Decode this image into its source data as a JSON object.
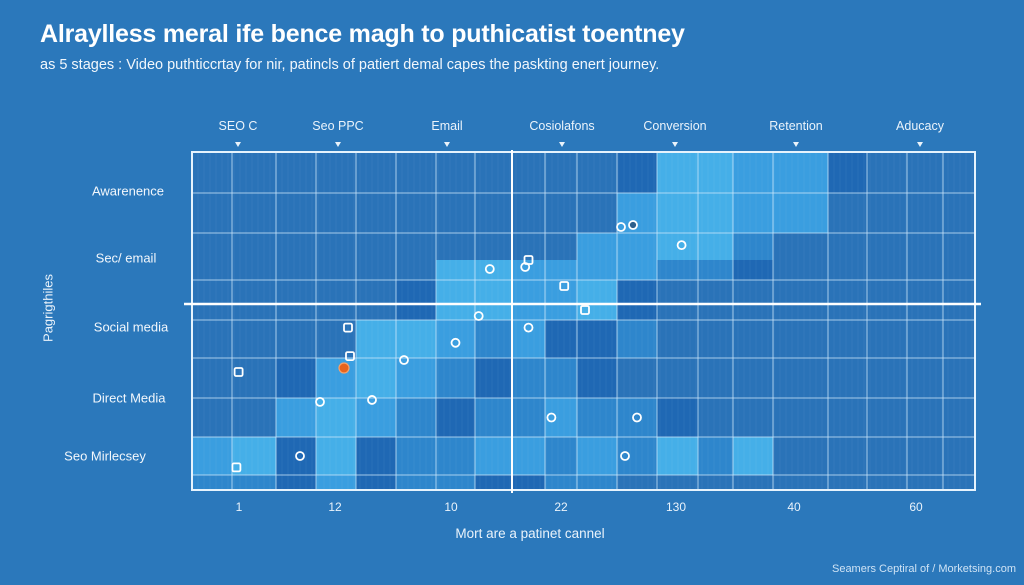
{
  "title": "Alraylless meral ife bence magh to puthicatist toentney",
  "subtitle": "as 5 stages : Video puthticcrtay for nir, patincls of patiert demal capes the paskting enert journey.",
  "credit": "Seamers Ceptiral of / Morketsing.com",
  "colors": {
    "background": "#2b78bb",
    "levels": [
      "#2a73b8",
      "#2e86cc",
      "#3a9ee0",
      "#45afe8",
      "#1f68b4"
    ],
    "grid_line": "#cfe8fb",
    "marker": "#ffffff",
    "highlight_marker": "#e8641c"
  },
  "chart_data": {
    "type": "heatmap",
    "title": "Alraylless meral ife bence magh to puthicatist toentney",
    "subtitle": "as 5 stages : Video puthticcrtay for nir, patincls of patiert demal capes the paskting enert journey.",
    "xlabel": "Mort are a patinet cannel",
    "ylabel": "Pagrigthiles",
    "stages": [
      "SEO C",
      "Seo PPC",
      "Email",
      "Cosiolafons",
      "Conversion",
      "Retention",
      "Aducacy"
    ],
    "rows": [
      "Awarenence",
      "Sec/ email",
      "Social media",
      "Direct Media",
      "Seo Mirlecsey"
    ],
    "xticks": [
      "1",
      "12",
      "10",
      "22",
      "130",
      "40",
      "60"
    ],
    "grid": true,
    "n_cols": 20,
    "n_rows": 10,
    "cells": [
      [
        0,
        0,
        0,
        0,
        0,
        0,
        0,
        0,
        0,
        0,
        0,
        4,
        3,
        3,
        2,
        2,
        4,
        0,
        0,
        0
      ],
      [
        0,
        0,
        0,
        0,
        0,
        0,
        0,
        0,
        0,
        0,
        0,
        2,
        3,
        3,
        2,
        2,
        0,
        0,
        0,
        0
      ],
      [
        0,
        0,
        0,
        0,
        0,
        0,
        0,
        0,
        0,
        0,
        2,
        2,
        3,
        3,
        1,
        0,
        0,
        0,
        0,
        0
      ],
      [
        0,
        0,
        0,
        0,
        0,
        0,
        3,
        3,
        2,
        2,
        2,
        2,
        1,
        1,
        4,
        0,
        0,
        0,
        0,
        0
      ],
      [
        0,
        0,
        0,
        0,
        0,
        4,
        3,
        3,
        2,
        2,
        3,
        4,
        0,
        0,
        0,
        0,
        0,
        0,
        0,
        0
      ],
      [
        0,
        0,
        0,
        0,
        3,
        3,
        2,
        1,
        2,
        4,
        4,
        1,
        0,
        0,
        0,
        0,
        0,
        0,
        0,
        0
      ],
      [
        0,
        0,
        4,
        2,
        3,
        2,
        1,
        4,
        1,
        1,
        4,
        0,
        0,
        0,
        0,
        0,
        0,
        0,
        0,
        0
      ],
      [
        0,
        0,
        2,
        3,
        2,
        1,
        4,
        1,
        1,
        2,
        1,
        1,
        4,
        0,
        0,
        0,
        0,
        0,
        0,
        0
      ],
      [
        2,
        3,
        4,
        3,
        4,
        1,
        1,
        2,
        2,
        1,
        2,
        1,
        3,
        1,
        3,
        0,
        0,
        0,
        0,
        0
      ],
      [
        1,
        1,
        4,
        2,
        4,
        1,
        1,
        4,
        4,
        1,
        1,
        0,
        0,
        0,
        0,
        0,
        0,
        0,
        0,
        0
      ]
    ],
    "markers": [
      {
        "shape": "circle",
        "col": 11.1,
        "row": 1.85
      },
      {
        "shape": "circle",
        "col": 11.4,
        "row": 1.8,
        "filled": true
      },
      {
        "shape": "circle",
        "col": 12.6,
        "row": 2.45
      },
      {
        "shape": "square",
        "col": 8.5,
        "row": 3.0
      },
      {
        "shape": "circle",
        "col": 7.4,
        "row": 3.45
      },
      {
        "shape": "circle",
        "col": 8.4,
        "row": 3.35
      },
      {
        "shape": "square",
        "col": 9.6,
        "row": 4.15
      },
      {
        "shape": "circle",
        "col": 7.1,
        "row": 4.9
      },
      {
        "shape": "square",
        "col": 10.2,
        "row": 4.75
      },
      {
        "shape": "circle",
        "col": 8.5,
        "row": 5.2
      },
      {
        "shape": "square",
        "col": 3.8,
        "row": 5.2
      },
      {
        "shape": "circle",
        "col": 6.5,
        "row": 5.6
      },
      {
        "shape": "square",
        "col": 3.85,
        "row": 5.95
      },
      {
        "shape": "circle",
        "col": 5.2,
        "row": 6.05
      },
      {
        "shape": "circle",
        "col": 3.7,
        "row": 6.25,
        "highlight": true
      },
      {
        "shape": "square",
        "col": 1.15,
        "row": 6.35
      },
      {
        "shape": "circle",
        "col": 3.1,
        "row": 7.1
      },
      {
        "shape": "circle",
        "col": 4.4,
        "row": 7.05
      },
      {
        "shape": "circle",
        "col": 9.2,
        "row": 7.5
      },
      {
        "shape": "circle",
        "col": 11.5,
        "row": 7.5
      },
      {
        "shape": "circle",
        "col": 2.6,
        "row": 8.5
      },
      {
        "shape": "square",
        "col": 1.1,
        "row": 8.8
      },
      {
        "shape": "circle",
        "col": 11.2,
        "row": 8.5
      }
    ],
    "divider": {
      "col": 8,
      "row": 4
    }
  }
}
